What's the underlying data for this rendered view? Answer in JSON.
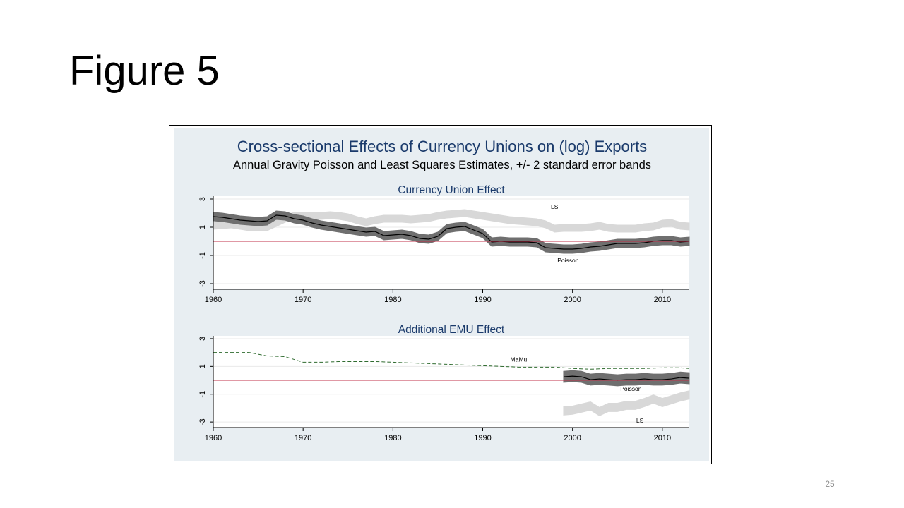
{
  "slide": {
    "title": "Figure 5",
    "page_number": "25"
  },
  "figure": {
    "title": "Cross-sectional Effects of Currency Unions on (log) Exports",
    "subtitle": "Annual Gravity Poisson and Least Squares Estimates, +/- 2 standard error bands"
  },
  "colors": {
    "background_panel": "#e8eef2",
    "plot_bg": "#ffffff",
    "title_blue": "#1a3a6b",
    "poisson_band": "#6f6f6f",
    "ls_band": "#d8d8d8",
    "zero_line": "#c0304a",
    "mamu_line": "#2f6b2f"
  },
  "chart_data": [
    {
      "type": "line",
      "title": "Currency Union Effect",
      "xlim": [
        1960,
        2013
      ],
      "ylim": [
        -3.4,
        3.2
      ],
      "x_ticks": [
        1960,
        1970,
        1980,
        1990,
        2000,
        2010
      ],
      "y_ticks": [
        3,
        1,
        -1,
        -3
      ],
      "reference_line_y": 0,
      "grid": true,
      "x": [
        1960,
        1961,
        1962,
        1963,
        1964,
        1965,
        1966,
        1967,
        1968,
        1969,
        1970,
        1971,
        1972,
        1973,
        1974,
        1975,
        1976,
        1977,
        1978,
        1979,
        1980,
        1981,
        1982,
        1983,
        1984,
        1985,
        1986,
        1987,
        1988,
        1989,
        1990,
        1991,
        1992,
        1993,
        1994,
        1995,
        1996,
        1997,
        1998,
        1999,
        2000,
        2001,
        2002,
        2003,
        2004,
        2005,
        2006,
        2007,
        2008,
        2009,
        2010,
        2011,
        2012,
        2013
      ],
      "series": [
        {
          "name": "LS",
          "style": "band",
          "values": [
            1.1,
            1.15,
            1.2,
            1.1,
            1.0,
            1.0,
            1.0,
            1.3,
            1.6,
            1.8,
            1.8,
            1.8,
            1.8,
            1.85,
            1.8,
            1.7,
            1.5,
            1.35,
            1.5,
            1.6,
            1.6,
            1.6,
            1.55,
            1.6,
            1.65,
            1.8,
            1.9,
            1.95,
            2.0,
            1.9,
            1.8,
            1.7,
            1.6,
            1.5,
            1.45,
            1.4,
            1.35,
            1.2,
            0.9,
            0.95,
            0.95,
            0.95,
            1.0,
            1.1,
            0.95,
            0.9,
            0.9,
            0.9,
            1.0,
            1.05,
            1.25,
            1.3,
            1.1,
            1.05
          ],
          "band_halfwidth": 0.25
        },
        {
          "name": "Poisson",
          "style": "band_with_center",
          "values": [
            1.75,
            1.7,
            1.6,
            1.5,
            1.45,
            1.4,
            1.45,
            1.85,
            1.8,
            1.6,
            1.5,
            1.3,
            1.15,
            1.05,
            0.95,
            0.85,
            0.75,
            0.65,
            0.7,
            0.4,
            0.45,
            0.5,
            0.4,
            0.2,
            0.15,
            0.35,
            0.9,
            1.0,
            1.05,
            0.8,
            0.55,
            -0.05,
            0.0,
            -0.05,
            -0.05,
            -0.05,
            -0.1,
            -0.45,
            -0.5,
            -0.55,
            -0.55,
            -0.5,
            -0.4,
            -0.35,
            -0.25,
            -0.15,
            -0.15,
            -0.15,
            -0.1,
            0.0,
            0.05,
            0.05,
            -0.05,
            0.0
          ],
          "band_halfwidth": 0.3
        }
      ]
    },
    {
      "type": "line",
      "title": "Additional EMU Effect",
      "xlim": [
        1960,
        2013
      ],
      "ylim": [
        -3.4,
        3.2
      ],
      "x_ticks": [
        1960,
        1970,
        1980,
        1990,
        2000,
        2010
      ],
      "y_ticks": [
        3,
        1,
        -1,
        -3
      ],
      "reference_line_y": 0,
      "grid": true,
      "series": [
        {
          "name": "MaMu",
          "style": "dashed",
          "x": [
            1960,
            1962,
            1964,
            1966,
            1968,
            1970,
            1972,
            1974,
            1976,
            1978,
            1980,
            1982,
            1984,
            1986,
            1988,
            1990,
            1992,
            1994,
            1996,
            1998,
            2000,
            2002,
            2004,
            2006,
            2008,
            2010,
            2012,
            2013
          ],
          "values": [
            2.0,
            2.0,
            2.0,
            1.75,
            1.7,
            1.3,
            1.3,
            1.35,
            1.35,
            1.35,
            1.3,
            1.25,
            1.2,
            1.15,
            1.1,
            1.05,
            1.0,
            0.95,
            0.95,
            0.95,
            0.85,
            0.8,
            0.85,
            0.85,
            0.85,
            0.9,
            0.9,
            0.85
          ]
        },
        {
          "name": "Poisson",
          "style": "band_with_center",
          "x": [
            1999,
            2000,
            2001,
            2002,
            2003,
            2004,
            2005,
            2006,
            2007,
            2008,
            2009,
            2010,
            2011,
            2012,
            2013
          ],
          "values": [
            0.25,
            0.3,
            0.25,
            0.05,
            0.1,
            0.05,
            0.0,
            0.05,
            0.05,
            0.1,
            0.05,
            0.05,
            0.1,
            0.2,
            0.15
          ],
          "band_halfwidth": 0.4
        },
        {
          "name": "LS",
          "style": "band",
          "x": [
            1999,
            2000,
            2001,
            2002,
            2003,
            2004,
            2005,
            2006,
            2007,
            2008,
            2009,
            2010,
            2011,
            2012,
            2013
          ],
          "values": [
            -2.2,
            -2.15,
            -2.0,
            -1.85,
            -2.25,
            -1.95,
            -1.95,
            -1.8,
            -1.8,
            -1.6,
            -1.35,
            -1.6,
            -1.4,
            -1.2,
            -1.05
          ],
          "band_halfwidth": 0.3
        }
      ]
    }
  ]
}
